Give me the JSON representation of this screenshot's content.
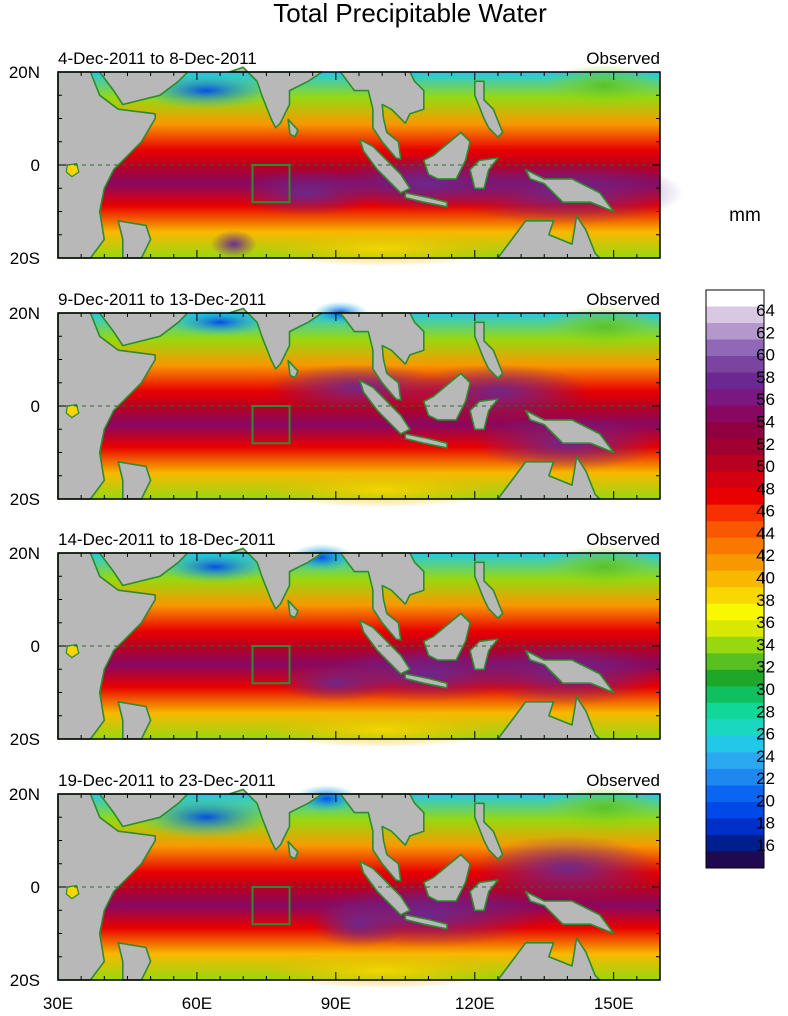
{
  "title": "Total Precipitable Water",
  "units": "mm",
  "panels": [
    {
      "period": "4-Dec-2011 to 8-Dec-2011",
      "label": "Observed"
    },
    {
      "period": "9-Dec-2011 to 13-Dec-2011",
      "label": "Observed"
    },
    {
      "period": "14-Dec-2011 to 18-Dec-2011",
      "label": "Observed"
    },
    {
      "period": "19-Dec-2011 to 23-Dec-2011",
      "label": "Observed"
    }
  ],
  "lat_labels": [
    "20N",
    "0",
    "20S"
  ],
  "lon_labels": [
    "30E",
    "60E",
    "90E",
    "120E",
    "150E"
  ],
  "colorbar": {
    "labels": [
      "64",
      "62",
      "60",
      "58",
      "56",
      "54",
      "52",
      "50",
      "48",
      "46",
      "44",
      "42",
      "40",
      "38",
      "36",
      "34",
      "32",
      "30",
      "28",
      "26",
      "24",
      "22",
      "20",
      "18",
      "16"
    ],
    "colors": [
      "#1e0a4e",
      "#001f8f",
      "#0030c8",
      "#0048e8",
      "#0a66f0",
      "#1e88f0",
      "#2aa8f0",
      "#22c8e8",
      "#1ad8c0",
      "#10d898",
      "#10c060",
      "#1ea82a",
      "#58c020",
      "#98d810",
      "#d8e800",
      "#f8f800",
      "#f8d800",
      "#f8b800",
      "#f89800",
      "#f87800",
      "#f85800",
      "#f83000",
      "#e80000",
      "#d00010",
      "#b80020",
      "#a00030",
      "#900040",
      "#880860",
      "#7a1880",
      "#6a2890",
      "#7a44a0",
      "#9068b8",
      "#b498cc",
      "#d8c8e2",
      "#ffffff"
    ]
  },
  "map": {
    "lon_range": [
      30,
      160
    ],
    "lat_range": [
      -20,
      20
    ],
    "land_color": "#b8b8b8",
    "coast_color": "#2e8b2e",
    "box_lon": [
      72,
      80
    ],
    "box_lat": [
      -8,
      0
    ]
  }
}
